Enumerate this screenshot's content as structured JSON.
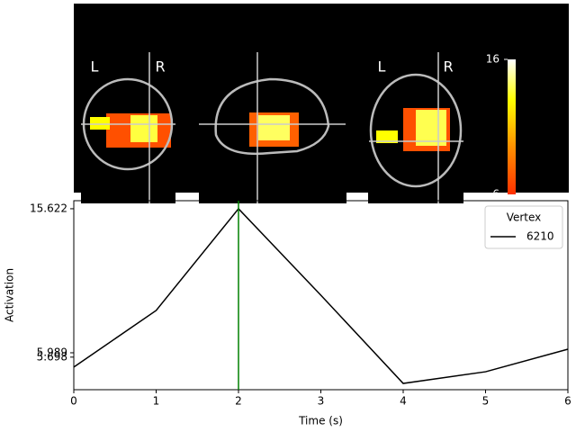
{
  "brain": {
    "labels": [
      "L",
      "R",
      "L",
      "R"
    ],
    "colorbar": {
      "ticks": [
        16,
        6
      ],
      "lim": [
        6,
        16
      ]
    }
  },
  "chart_data": {
    "type": "line",
    "x": [
      0,
      1,
      2,
      3,
      4,
      5,
      6
    ],
    "series": [
      {
        "name": "6210",
        "color": "#000000",
        "values": [
          5.03,
          8.82,
          15.622,
          9.84,
          3.94,
          4.72,
          6.23
        ]
      }
    ],
    "legend_title": "Vertex",
    "legend": "upper right",
    "time_marker": 2,
    "time_marker_color": "#008000",
    "xlabel": "Time (s)",
    "ylabel": "Activation",
    "xlim": [
      0,
      6
    ],
    "xticks": [
      0,
      1,
      2,
      3,
      4,
      5,
      6
    ],
    "ylim": [
      3.52,
      16.16
    ],
    "yticks": [
      5.698,
      5.989,
      15.622
    ]
  }
}
